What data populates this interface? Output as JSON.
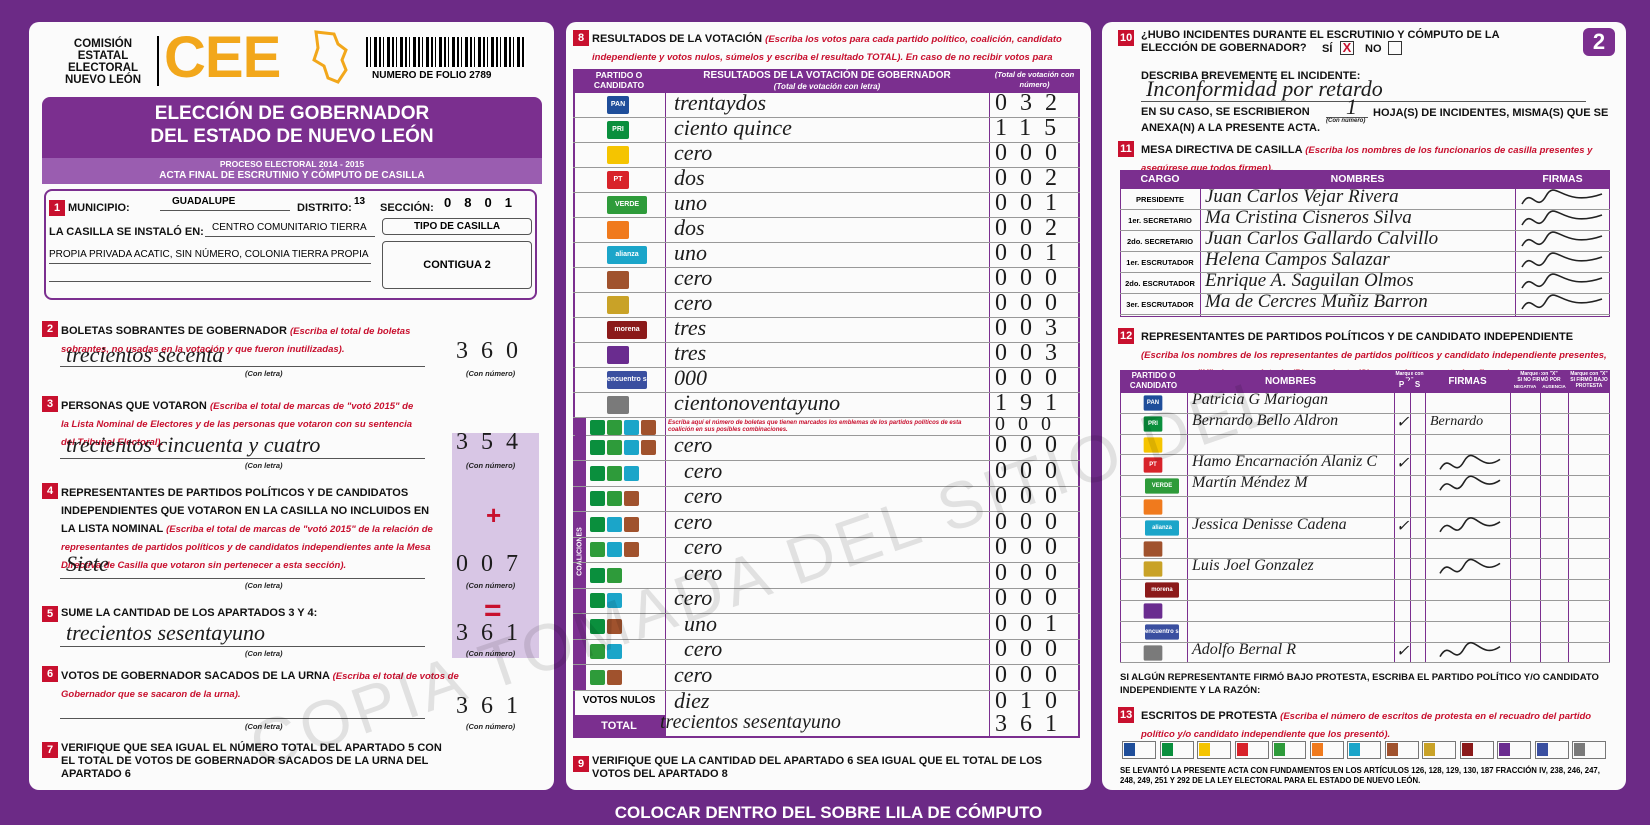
{
  "header": {
    "org": [
      "COMISIÓN",
      "ESTATAL",
      "ELECTORAL",
      "NUEVO LEÓN"
    ],
    "logo": "CEE",
    "folio": "NUMERO DE FOLIO 2789",
    "sheet": "2"
  },
  "title": {
    "line1": "ELECCIÓN DE GOBERNADOR",
    "line2": "DEL ESTADO DE NUEVO LEÓN",
    "process": "PROCESO ELECTORAL 2014 - 2015",
    "subtitle": "ACTA FINAL DE ESCRUTINIO Y CÓMPUTO DE CASILLA"
  },
  "captions": {
    "letter": "(Con letra)",
    "number": "(Con número)"
  },
  "s1": {
    "number": "1",
    "municipio_label": "MUNICIPIO:",
    "municipio": "GUADALUPE",
    "distrito_label": "DISTRITO:",
    "distrito": "13",
    "seccion_label": "SECCIÓN:",
    "seccion": "0801",
    "installed_label": "LA CASILLA SE INSTALÓ EN:",
    "installed": "CENTRO COMUNITARIO TIERRA",
    "installed2": "PROPIA PRIVADA ACATIC, SIN NÚMERO, COLONIA TIERRA PROPIA",
    "tipo_label": "TIPO DE CASILLA",
    "tipo": "CONTIGUA 2"
  },
  "s2": {
    "number": "2",
    "title": "BOLETAS SOBRANTES DE GOBERNADOR",
    "instruction": "(Escriba el total de boletas sobrantes, no usadas en la votación y que fueron inutilizadas).",
    "letter": "trecientos secenta",
    "digits": "360"
  },
  "s3": {
    "number": "3",
    "title": "PERSONAS QUE VOTARON",
    "instruction": "(Escriba el total de marcas de \"votó 2015\" de la Lista Nominal de Electores y de las personas que votaron con su sentencia del Tribunal Electoral).",
    "letter": "trecientos cincuenta y cuatro",
    "digits": "354"
  },
  "s4": {
    "number": "4",
    "title": "REPRESENTANTES DE PARTIDOS POLÍTICOS Y DE CANDIDATOS INDEPENDIENTES QUE VOTARON EN LA CASILLA NO INCLUIDOS EN LA LISTA NOMINAL",
    "instruction": "(Escriba el total de marcas de \"votó 2015\" de la relación de representantes de partidos políticos y de candidatos independientes ante la Mesa Directiva de Casilla que votaron sin pertenecer a esta sección).",
    "letter": "Siete",
    "digits": "007",
    "operator": "+"
  },
  "s5": {
    "number": "5",
    "title": "SUME LA CANTIDAD DE LOS APARTADOS 3 Y 4:",
    "letter": "trecientos sesentayuno",
    "digits": "361",
    "operator": "="
  },
  "s6": {
    "number": "6",
    "title": "VOTOS DE GOBERNADOR SACADOS DE LA URNA",
    "instruction": "(Escriba el total de votos de Gobernador que se sacaron de la urna).",
    "digits": "361"
  },
  "s7": {
    "number": "7",
    "text": "VERIFIQUE QUE SEA IGUAL EL NÚMERO TOTAL DEL APARTADO 5 CON EL TOTAL DE VOTOS DE GOBERNADOR SACADOS DE LA URNA DEL APARTADO 6"
  },
  "s8": {
    "number": "8",
    "title": "RESULTADOS DE LA VOTACIÓN",
    "instruction": "(Escriba los votos para cada partido político, coalición, candidato independiente y votos nulos, súmelos y escriba el resultado TOTAL).",
    "note": "En caso de no recibir votos para algún partido, coalición o candidato independiente escriba ceros.",
    "col_party": "PARTIDO O CANDIDATO",
    "col_results": "RESULTADOS DE LA VOTACIÓN DE GOBERNADOR",
    "col_letter": "(Total de votación con letra)",
    "col_number": "(Total de votación con número)",
    "rows": [
      {
        "logo": "PAN",
        "letter": "trentaydos",
        "digits": "032"
      },
      {
        "logo": "PRI",
        "letter": "ciento quince",
        "digits": "115"
      },
      {
        "letter": "cero",
        "digits": "000"
      },
      {
        "logo": "PT",
        "letter": "dos",
        "digits": "002"
      },
      {
        "logo": "VERDE",
        "letter": "uno",
        "digits": "001"
      },
      {
        "letter": "dos",
        "digits": "002"
      },
      {
        "logo": "alianza",
        "letter": "uno",
        "digits": "001"
      },
      {
        "letter": "cero",
        "digits": "000"
      },
      {
        "letter": "cero",
        "digits": "000"
      },
      {
        "logo": "morena",
        "letter": "tres",
        "digits": "003"
      },
      {
        "letter": "tres",
        "digits": "003"
      },
      {
        "logo": "encuentro social",
        "letter": "000",
        "digits": "000"
      },
      {
        "letter": "cientonoventayuno",
        "digits": "191"
      }
    ],
    "coalition_label": "COALICIONES",
    "coalition_note": "Escriba aquí el número de boletas que tienen marcados los emblemas de los partidos políticos de esta coalición en sus posibles combinaciones.",
    "coalition_note_digits": "000",
    "coalitions": [
      {
        "letter": "cero",
        "digits": "000"
      },
      {
        "letter": "cero",
        "digits": "000"
      },
      {
        "letter": "cero",
        "digits": "000"
      },
      {
        "letter": "cero",
        "digits": "000"
      },
      {
        "letter": "cero",
        "digits": "000"
      },
      {
        "letter": "cero",
        "digits": "000"
      },
      {
        "letter": "cero",
        "digits": "000"
      },
      {
        "letter": "uno",
        "digits": "001"
      },
      {
        "letter": "cero",
        "digits": "000"
      },
      {
        "letter": "cero",
        "digits": "000"
      }
    ],
    "nulos_label": "VOTOS NULOS",
    "nulos_letter": "diez",
    "nulos_digits": "010",
    "total_label": "TOTAL",
    "total_letter": "trecientos sesentayuno",
    "total_digits": "361"
  },
  "s9": {
    "number": "9",
    "text": "VERIFIQUE QUE LA CANTIDAD DEL APARTADO 6 SEA IGUAL QUE EL TOTAL DE LOS VOTOS DEL APARTADO 8"
  },
  "s10": {
    "number": "10",
    "question": "¿HUBO INCIDENTES DURANTE EL ESCRUTINIO Y CÓMPUTO DE LA ELECCIÓN DE GOBERNADOR?",
    "yes": "SÍ",
    "mark": "X",
    "no": "NO",
    "describe": "DESCRIBA BREVEMENTE EL INCIDENTE:",
    "incident": "Inconformidad por retardo",
    "sheets_pre": "EN SU CASO, SE ESCRIBIERON",
    "sheets": "1",
    "sheets_post": "HOJA(S) DE INCIDENTES, MISMA(S) QUE SE ANEXA(N) A LA PRESENTE ACTA.",
    "sheets_caption": "(Con número)"
  },
  "s11": {
    "number": "11",
    "title": "MESA DIRECTIVA DE CASILLA",
    "instruction": "(Escriba los nombres de los funcionarios de casilla presentes y asegúrese que todos firmen).",
    "columns": [
      "CARGO",
      "NOMBRES",
      "FIRMAS"
    ],
    "rows": [
      {
        "cargo": "PRESIDENTE",
        "name": "Juan Carlos Vejar Rivera"
      },
      {
        "cargo": "1er. SECRETARIO",
        "name": "Ma Cristina Cisneros Silva"
      },
      {
        "cargo": "2do. SECRETARIO",
        "name": "Juan Carlos Gallardo Calvillo"
      },
      {
        "cargo": "1er. ESCRUTADOR",
        "name": "Helena Campos Salazar"
      },
      {
        "cargo": "2do. ESCRUTADOR",
        "name": "Enrique A. Saguilan Olmos"
      },
      {
        "cargo": "3er. ESCRUTADOR",
        "name": "Ma de Cercres Muñiz Barron"
      }
    ]
  },
  "s12": {
    "number": "12",
    "title": "REPRESENTANTES DE PARTIDOS POLÍTICOS Y DE CANDIDATO INDEPENDIENTE",
    "instruction": "(Escriba los nombres de los representantes de partidos políticos y candidato independiente presentes, marque con \"X\" si es propietario (P) o suplente (S) y asegúrese que todos firmen).",
    "col_party": "PARTIDO O CANDIDATO",
    "col_names": "NOMBRES",
    "mark_captions": [
      "Marque con \"X\"",
      "Marque con \"X\"",
      "Marque con \"X\""
    ],
    "col_p": "P",
    "col_s": "S",
    "col_firmas": "FIRMAS",
    "col_no_sign": "SI NO FIRMÓ POR",
    "col_negativa": "NEGATIVA",
    "col_ausencia": "AUSENCIA",
    "col_protest": "SI FIRMÓ BAJO PROTESTA",
    "rows": [
      {
        "name": "Patricia G Mariogan"
      },
      {
        "name": "Bernardo Bello Aldron",
        "mark": "✓",
        "signature": "Bernardo"
      },
      {},
      {
        "name": "Hamo Encarnación Alaniz C",
        "mark": "✓"
      },
      {
        "name": "Martín Méndez M"
      },
      {},
      {
        "name": "Jessica Denisse Cadena",
        "mark": "✓"
      },
      {},
      {
        "name": "Luis Joel Gonzalez"
      },
      {},
      {},
      {},
      {
        "name": "Adolfo Bernal R",
        "mark": "✓"
      }
    ],
    "protest_note": "SI ALGÚN REPRESENTANTE FIRMÓ BAJO PROTESTA, ESCRIBA EL PARTIDO POLÍTICO Y/O CANDIDATO INDEPENDIENTE Y LA RAZÓN:"
  },
  "s13": {
    "number": "13",
    "title": "ESCRITOS DE PROTESTA",
    "instruction": "(Escriba el número de escritos de protesta en el recuadro del partido político y/o candidato independiente que los presentó)."
  },
  "legal": "SE LEVANTÓ LA PRESENTE ACTA CON FUNDAMENTOS EN LOS ARTÍCULOS 126, 128, 129, 130, 187 FRACCIÓN IV, 238, 246, 247, 248, 249, 251 Y 292 DE LA LEY ELECTORAL PARA EL ESTADO DE NUEVO LEÓN.",
  "footer": "COLOCAR DENTRO DEL SOBRE LILA DE CÓMPUTO",
  "watermark": "COPIA TOMADA DEL SITIO DEL"
}
